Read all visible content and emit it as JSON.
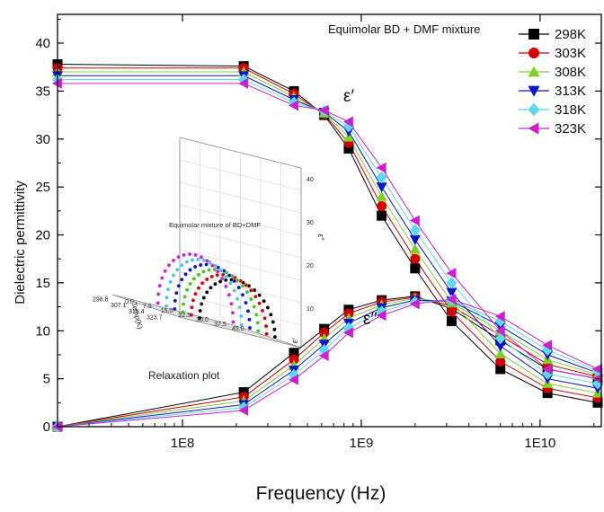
{
  "chart_data": [
    {
      "type": "scatter",
      "title": "",
      "xlabel": "Frequency (Hz)",
      "ylabel": "Dielectric permittivity",
      "x_scale": "log",
      "xlim": [
        20000000,
        22000000000
      ],
      "ylim": [
        0,
        43
      ],
      "x_ticks": [
        {
          "value": 100000000,
          "label": "1E8"
        },
        {
          "value": 1000000000,
          "label": "1E9"
        },
        {
          "value": 10000000000,
          "label": "1E10"
        }
      ],
      "y_ticks": [
        0,
        5,
        10,
        15,
        20,
        25,
        30,
        35,
        40
      ],
      "annotation": "Equimolar BD + DMF mixture",
      "curve_labels": [
        "ε′",
        "ε′′"
      ],
      "legend_position": "top-right",
      "grid": false,
      "series": [
        {
          "name": "298K",
          "color": "#000000",
          "marker": "square",
          "eps_prime": [
            37.8,
            37.6,
            35.0,
            32.5,
            29.0,
            22.0,
            16.5,
            11.0,
            6.0,
            3.5,
            2.5
          ],
          "eps_double_prime": [
            0.0,
            3.6,
            7.7,
            10.2,
            12.2,
            13.2,
            13.6,
            12.3,
            9.0,
            6.0,
            5.0
          ]
        },
        {
          "name": "303K",
          "color": "#d40000",
          "marker": "circle",
          "eps_prime": [
            37.4,
            37.4,
            34.7,
            32.6,
            29.6,
            23.0,
            17.5,
            12.0,
            6.8,
            4.0,
            3.0
          ],
          "eps_double_prime": [
            0.0,
            3.1,
            7.0,
            9.8,
            11.8,
            13.0,
            13.5,
            12.6,
            9.5,
            6.5,
            5.2
          ]
        },
        {
          "name": "308K",
          "color": "#7fd12a",
          "marker": "triangle-up",
          "eps_prime": [
            37.0,
            37.0,
            34.4,
            32.7,
            30.2,
            24.0,
            18.5,
            13.0,
            7.6,
            4.5,
            3.5
          ],
          "eps_double_prime": [
            0.0,
            2.7,
            6.4,
            9.2,
            11.3,
            12.7,
            13.4,
            12.9,
            10.0,
            7.0,
            5.4
          ]
        },
        {
          "name": "313K",
          "color": "#0a14c8",
          "marker": "triangle-down",
          "eps_prime": [
            36.6,
            36.6,
            34.1,
            32.8,
            30.8,
            25.0,
            19.5,
            14.0,
            8.4,
            5.0,
            4.0
          ],
          "eps_double_prime": [
            0.0,
            2.3,
            5.9,
            8.6,
            10.8,
            12.4,
            13.2,
            13.1,
            10.5,
            7.5,
            5.6
          ]
        },
        {
          "name": "318K",
          "color": "#5fd8f0",
          "marker": "diamond",
          "eps_prime": [
            36.2,
            36.2,
            33.8,
            32.9,
            31.3,
            26.0,
            20.5,
            15.0,
            9.2,
            5.5,
            4.5
          ],
          "eps_double_prime": [
            0.0,
            2.0,
            5.4,
            8.0,
            10.3,
            12.0,
            13.0,
            13.2,
            11.0,
            8.0,
            5.8
          ]
        },
        {
          "name": "323K",
          "color": "#cc1fd0",
          "marker": "triangle-left",
          "eps_prime": [
            35.8,
            35.8,
            33.5,
            33.0,
            31.8,
            27.0,
            21.5,
            16.0,
            10.0,
            6.0,
            5.0
          ],
          "eps_double_prime": [
            0.0,
            1.7,
            4.9,
            7.4,
            9.8,
            11.6,
            12.8,
            13.3,
            11.5,
            8.5,
            6.0
          ]
        }
      ],
      "x_frequencies": [
        20000000,
        220000000,
        420000000,
        620000000,
        850000000,
        1300000000,
        2000000000,
        3200000000,
        6000000000,
        11000000000,
        21000000000
      ]
    },
    {
      "type": "scatter3d",
      "title": "Equimolar mixture of BD+DMF",
      "caption": "Relaxation plot",
      "axis_labels": {
        "temperature": "Temp(K)",
        "eps_prime": "ε′",
        "eps_double_prime": "ε′′"
      },
      "temperature_ticks": [
        "298.8",
        "307.1",
        "315.4",
        "323.7"
      ],
      "eps_prime_ticks": [
        "0.0",
        "7.5",
        "15.0",
        "22.5",
        "30.0",
        "37.5",
        "45.0"
      ],
      "eps_double_prime_ticks": [
        "10",
        "20",
        "30",
        "40"
      ],
      "arcs": [
        {
          "temperature": "298K",
          "color": "#000000"
        },
        {
          "temperature": "303K",
          "color": "#e00000"
        },
        {
          "temperature": "308K",
          "color": "#3ec820"
        },
        {
          "temperature": "313K",
          "color": "#1010c8"
        },
        {
          "temperature": "318K",
          "color": "#40c8e8"
        },
        {
          "temperature": "323K",
          "color": "#d020d0"
        }
      ]
    }
  ]
}
